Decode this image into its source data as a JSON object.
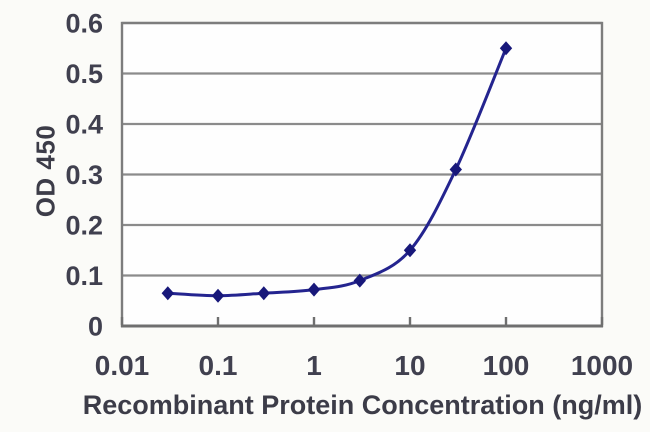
{
  "chart_data": {
    "type": "line",
    "x": [
      0.03,
      0.1,
      0.3,
      1,
      3,
      10,
      30,
      100
    ],
    "series": [
      {
        "values": [
          0.065,
          0.06,
          0.065,
          0.072,
          0.09,
          0.15,
          0.31,
          0.55
        ],
        "color": "#24248f",
        "marker": "diamond",
        "marker_color": "#18187a"
      }
    ],
    "xlabel": "Recombinant Protein Concentration (ng/ml)",
    "ylabel": "OD 450",
    "x_scale": "log",
    "xlim": [
      0.01,
      1000
    ],
    "ylim": [
      0,
      0.6
    ],
    "x_ticks": [
      {
        "value": 0.01,
        "label": "0.01"
      },
      {
        "value": 0.1,
        "label": "0.1"
      },
      {
        "value": 1,
        "label": "1"
      },
      {
        "value": 10,
        "label": "10"
      },
      {
        "value": 100,
        "label": "100"
      },
      {
        "value": 1000,
        "label": "1000"
      }
    ],
    "y_ticks": [
      {
        "value": 0,
        "label": "0"
      },
      {
        "value": 0.1,
        "label": "0.1"
      },
      {
        "value": 0.2,
        "label": "0.2"
      },
      {
        "value": 0.3,
        "label": "0.3"
      },
      {
        "value": 0.4,
        "label": "0.4"
      },
      {
        "value": 0.5,
        "label": "0.5"
      },
      {
        "value": 0.6,
        "label": "0.6"
      }
    ],
    "grid": "horizontal",
    "legend": "none",
    "line_smooth": true,
    "colors": {
      "plot_bg": "#fefefe",
      "page_bg": "#fbfbf8",
      "grid": "#8b8b8b",
      "border": "#7d7d7d",
      "axis": "#6f6f6f",
      "tick_text": "#40404f",
      "title_text": "#3c3c48"
    }
  }
}
